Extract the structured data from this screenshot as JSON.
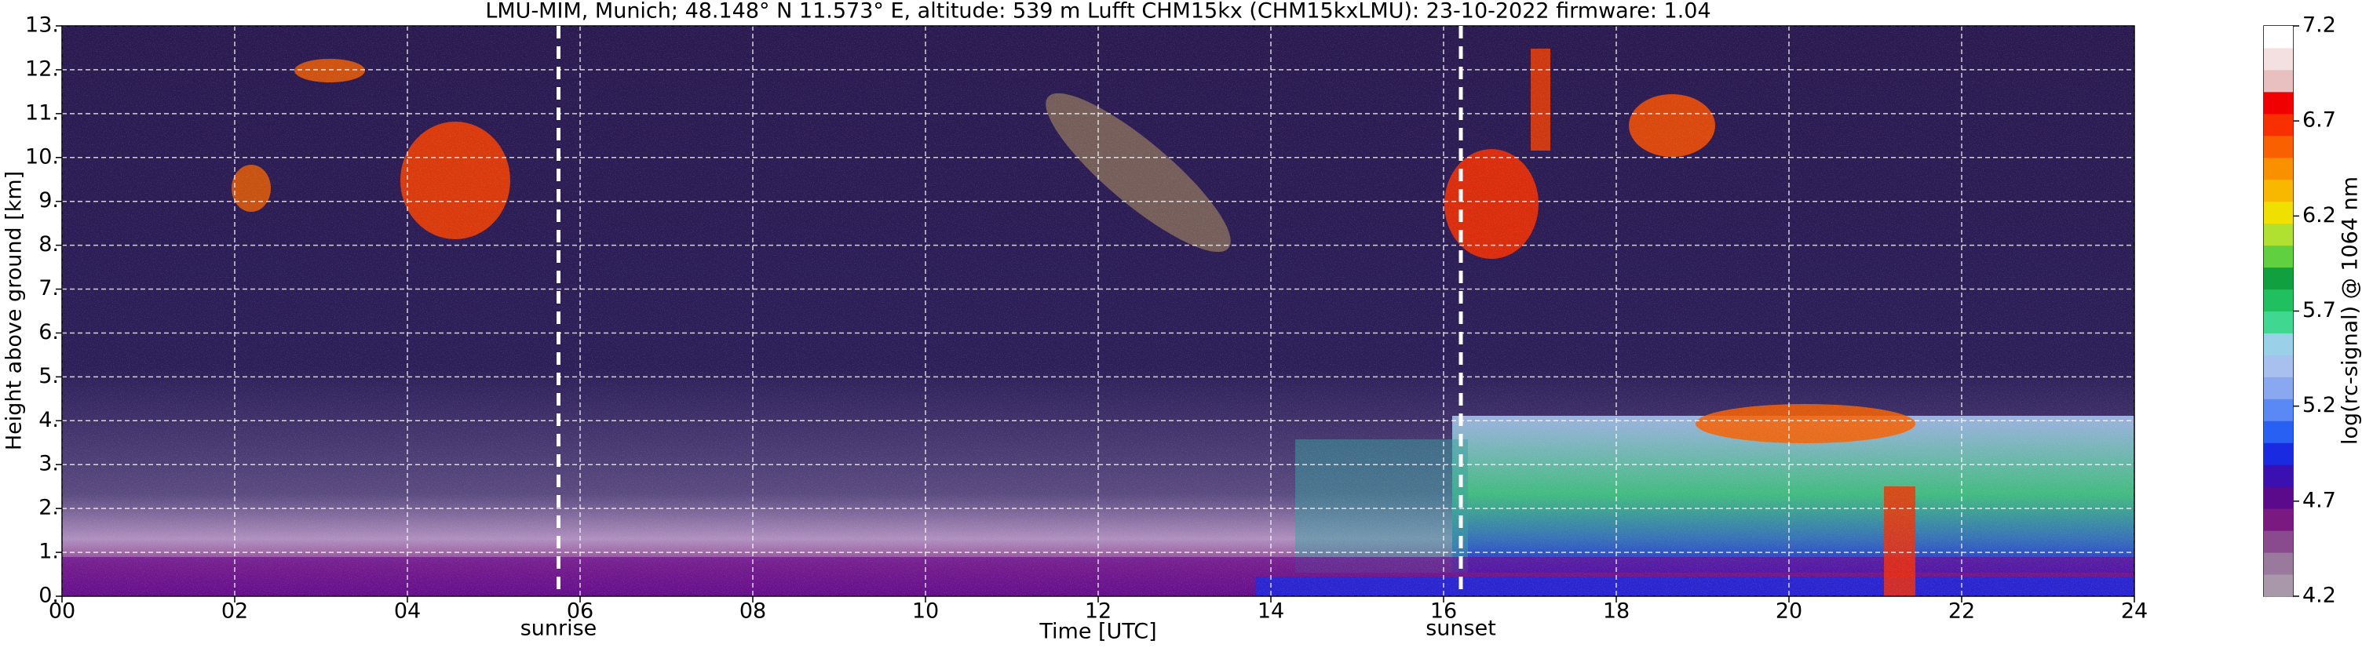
{
  "chart_data": {
    "type": "heatmap",
    "title": "LMU-MIM, Munich; 48.148° N 11.573° E, altitude: 539 m    Lufft CHM15kx (CHM15kxLMU): 23-10-2022    firmware: 1.04",
    "xlabel": "Time [UTC]",
    "ylabel": "Height above ground [km]",
    "colorbar_label": "log(rc-signal) @ 1064 nm",
    "xlim": [
      0,
      24
    ],
    "xticks": [
      {
        "value": 0,
        "label": "00"
      },
      {
        "value": 2,
        "label": "02"
      },
      {
        "value": 4,
        "label": "04"
      },
      {
        "value": 6,
        "label": "06"
      },
      {
        "value": 8,
        "label": "08"
      },
      10,
      12,
      14,
      16,
      18,
      20,
      22,
      24
    ],
    "ylim": [
      0,
      13
    ],
    "yticks": [
      {
        "value": 0,
        "label": "0."
      },
      {
        "value": 1,
        "label": "1."
      },
      {
        "value": 2,
        "label": "2."
      },
      {
        "value": 3,
        "label": "3."
      },
      {
        "value": 4,
        "label": "4."
      },
      {
        "value": 5,
        "label": "5."
      },
      {
        "value": 6,
        "label": "6."
      },
      {
        "value": 7,
        "label": "7."
      },
      {
        "value": 8,
        "label": "8."
      },
      {
        "value": 9,
        "label": "9."
      },
      {
        "value": 10,
        "label": "10."
      },
      {
        "value": 11,
        "label": "11."
      },
      {
        "value": 12,
        "label": "12."
      },
      {
        "value": 13,
        "label": "13."
      }
    ],
    "clim": [
      4.2,
      7.2
    ],
    "cticks": [
      4.2,
      4.7,
      5.2,
      5.7,
      6.2,
      6.7,
      7.2
    ],
    "colorscale": [
      "#a898aa",
      "#9a7a9c",
      "#8a4a8e",
      "#7a1a80",
      "#5c0a8c",
      "#3a10b0",
      "#1a2ae0",
      "#2860f4",
      "#5a88f4",
      "#8aa8f0",
      "#a8c0ee",
      "#9ad0e8",
      "#40d890",
      "#20c060",
      "#10a040",
      "#60d040",
      "#b0e030",
      "#f0e000",
      "#f8b800",
      "#f89000",
      "#f86000",
      "#f83000",
      "#f00000",
      "#e8c0c0",
      "#f4e0e0",
      "#ffffff"
    ],
    "grid": true,
    "annotations": [
      {
        "text": "sunrise",
        "x": 5.75
      },
      {
        "text": "sunset",
        "x": 16.2
      }
    ]
  }
}
